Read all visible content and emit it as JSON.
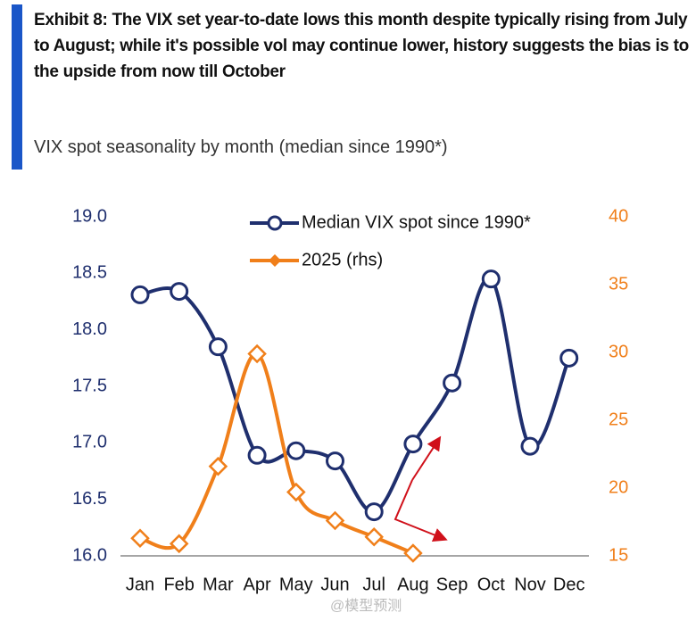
{
  "chart_data": {
    "type": "line",
    "title": "Exhibit 8: The VIX set year-to-date lows this month despite typically rising from July to August; while it's possible vol may continue lower, history suggests the bias is to the upside from now till October",
    "subtitle": "VIX spot seasonality by month (median since 1990*)",
    "categories": [
      "Jan",
      "Feb",
      "Mar",
      "Apr",
      "May",
      "Jun",
      "Jul",
      "Aug",
      "Sep",
      "Oct",
      "Nov",
      "Dec"
    ],
    "series": [
      {
        "name": "Median VIX spot since 1990*",
        "color": "#1f2f6e",
        "marker": "circle",
        "values": [
          18.31,
          18.34,
          17.85,
          16.89,
          16.93,
          16.84,
          16.39,
          16.99,
          17.53,
          18.45,
          16.97,
          17.75
        ]
      },
      {
        "name": "2025 (rhs)",
        "color": "#f07f1a",
        "marker": "diamond",
        "axis": "y2",
        "values": [
          16.3,
          15.9,
          21.6,
          29.9,
          19.7,
          17.6,
          16.4,
          15.2,
          null,
          null,
          null,
          null
        ]
      }
    ],
    "ylim": [
      16,
      19
    ],
    "yticks": [
      {
        "value": 16,
        "label": "16.0"
      },
      16.5,
      {
        "value": 17,
        "label": "17.0"
      },
      17.5,
      {
        "value": 18,
        "label": "18.0"
      },
      18.5,
      {
        "value": 19,
        "label": "19.0"
      }
    ],
    "y2lim": [
      15,
      40
    ],
    "y2ticks": [
      15,
      20,
      25,
      30,
      35,
      40
    ],
    "grid": false,
    "legend": "top",
    "watermark": "@模型预测"
  }
}
